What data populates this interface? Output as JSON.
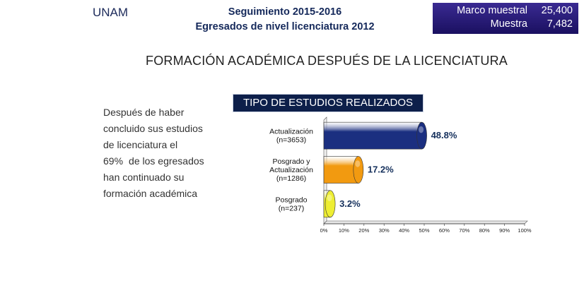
{
  "header": {
    "org": "UNAM",
    "title_line1": "Seguimiento 2015-2016",
    "title_line2": "Egresados de nivel licenciatura 2012",
    "sample": {
      "marco_label": "Marco muestral",
      "marco_value": "25,400",
      "muestra_label": "Muestra",
      "muestra_value": "7,482"
    }
  },
  "subtitle": "FORMACIÓN ACADÉMICA DESPUÉS DE LA LICENCIATURA",
  "side_text": {
    "line1": "Después de haber",
    "line2": "concluido sus estudios",
    "line3": "de licenciatura el",
    "pct": "69%",
    "line4": "de los egresados",
    "line5": "han continuado su",
    "line6": "formación académica"
  },
  "chart_data": {
    "type": "bar",
    "orientation": "horizontal",
    "title": "TIPO DE ESTUDIOS REALIZADOS",
    "categories": [
      [
        "Actualización",
        "(n=3653)"
      ],
      [
        "Posgrado y",
        "Actualización",
        "(n=1286)"
      ],
      [
        "Posgrado",
        "(n=237)"
      ]
    ],
    "values": [
      48.8,
      17.2,
      3.2
    ],
    "value_labels": [
      "48.8%",
      "17.2%",
      "3.2%"
    ],
    "colors": [
      "#1b2f80",
      "#f29a10",
      "#eeee33"
    ],
    "xlim": [
      0,
      100
    ],
    "xticks": [
      "0%",
      "10%",
      "20%",
      "30%",
      "40%",
      "50%",
      "60%",
      "70%",
      "80%",
      "90%",
      "100%"
    ],
    "grid": false,
    "legend": "none"
  }
}
